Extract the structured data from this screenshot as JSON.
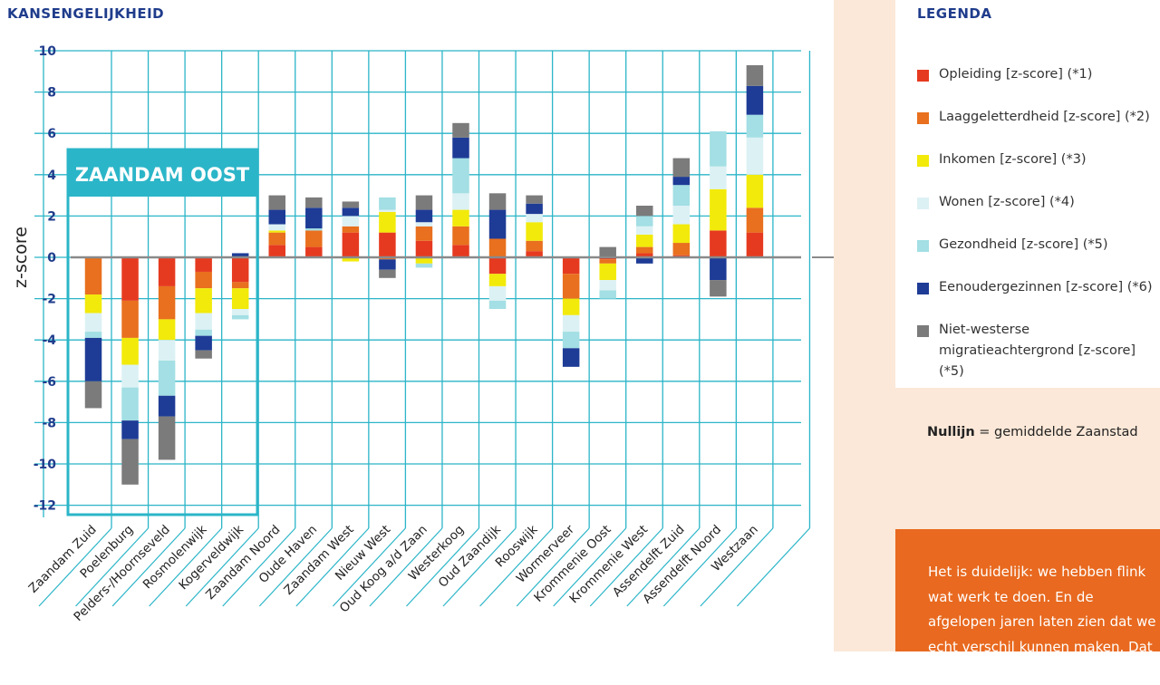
{
  "header": {
    "title": "KANSENGELIJKHEID"
  },
  "legend": {
    "title": "LEGENDA",
    "items": [
      {
        "label": "Opleiding [z-score] (*1)",
        "color": "#e63a20"
      },
      {
        "label": "Laaggeletterdheid [z-score] (*2)",
        "color": "#e8701e"
      },
      {
        "label": "Inkomen [z-score] (*3)",
        "color": "#f2ea0a"
      },
      {
        "label": "Wonen [z-score] (*4)",
        "color": "#dcf1f4"
      },
      {
        "label": "Gezondheid [z-score] (*5)",
        "color": "#a3dfe4"
      },
      {
        "label": "Eenoudergezinnen [z-score] (*6)",
        "color": "#1e3c96"
      },
      {
        "label": "Niet-westerse migratieachtergrond [z-score] (*5)",
        "color": "#7b7b7b"
      }
    ]
  },
  "nullijn": {
    "bold": "Nullijn",
    "text": " = gemiddelde Zaanstad"
  },
  "callout": {
    "text": "Het is duidelijk: we hebben flink wat werk te doen. En de afgelopen jaren laten zien dat we echt verschil kunnen maken. Dat geeft hoop –"
  },
  "highlight": {
    "label": "ZAANDAM OOST"
  },
  "colors": {
    "grid": "#2bb5c8",
    "axis": "#1f3c8c",
    "zero_line": "#8a8a8a"
  },
  "chart_data": {
    "type": "bar",
    "stacked": true,
    "ylabel": "z-score",
    "ylim": [
      -12.8,
      10
    ],
    "yticks": [
      10,
      8,
      6,
      4,
      2,
      0,
      -2,
      -4,
      -6,
      -8,
      -10,
      -12
    ],
    "categories": [
      "Zaandam Zuid",
      "Poelenburg",
      "Pelders-/Hoornseveld",
      "Rosmolenwijk",
      "Kogerveldwijk",
      "Zaandam Noord",
      "Oude Haven",
      "Zaandam West",
      "Nieuw West",
      "Oud Koog a/d Zaan",
      "Westerkoog",
      "Oud Zaandijk",
      "Rooswijk",
      "Wormerveer",
      "Krommenie Oost",
      "Krommenie West",
      "Assendelft Zuid",
      "Assendelft Noord",
      "Westzaan"
    ],
    "series": [
      {
        "name": "Opleiding [z-score] (*1)",
        "values": [
          0,
          -2.1,
          -1.4,
          -0.7,
          -1.2,
          0.6,
          0.5,
          1.2,
          1.2,
          0.8,
          0.6,
          -0.8,
          0.3,
          -0.8,
          -0.1,
          0.2,
          0.1,
          1.3,
          1.2
        ]
      },
      {
        "name": "Laaggeletterdheid [z-score] (*2)",
        "values": [
          -1.8,
          -1.8,
          -1.6,
          -0.8,
          -0.3,
          0.6,
          0.8,
          0.3,
          -0.1,
          0.7,
          0.9,
          0.9,
          0.5,
          -1.2,
          -0.2,
          0.3,
          0.6,
          0.0,
          1.2
        ]
      },
      {
        "name": "Inkomen [z-score] (*3)",
        "values": [
          -0.9,
          -1.3,
          -1.0,
          -1.2,
          -1.0,
          0.1,
          0.0,
          -0.2,
          1.0,
          -0.3,
          0.8,
          -0.6,
          0.9,
          -0.8,
          -0.8,
          0.6,
          0.9,
          2.0,
          1.6
        ]
      },
      {
        "name": "Wonen [z-score] (*4)",
        "values": [
          -0.9,
          -1.1,
          -1.0,
          -0.8,
          -0.3,
          0.3,
          0.0,
          0.5,
          0.1,
          0.2,
          0.8,
          -0.7,
          0.4,
          -0.8,
          -0.5,
          0.4,
          0.9,
          1.1,
          1.8
        ]
      },
      {
        "name": "Gezondheid [z-score] (*5)",
        "values": [
          -0.3,
          -1.6,
          -1.7,
          -0.3,
          -0.2,
          0.0,
          0.1,
          0.0,
          0.6,
          -0.2,
          1.7,
          -0.4,
          0.0,
          -0.8,
          -0.4,
          0.5,
          1.0,
          1.7,
          1.1
        ]
      },
      {
        "name": "Eenoudergezinnen [z-score] (*6)",
        "values": [
          -2.1,
          -0.9,
          -1.0,
          -0.7,
          0.2,
          0.7,
          1.0,
          0.4,
          -0.5,
          0.6,
          1.0,
          1.4,
          0.5,
          -0.9,
          0.0,
          -0.3,
          0.4,
          -1.1,
          1.4
        ]
      },
      {
        "name": "Niet-westerse migratieachtergrond [z-score] (*5)",
        "values": [
          -1.3,
          -2.2,
          -2.1,
          -0.4,
          0.0,
          0.7,
          0.5,
          0.3,
          -0.4,
          0.7,
          0.7,
          0.8,
          0.4,
          0.0,
          0.5,
          0.5,
          0.9,
          -0.8,
          1.0
        ]
      }
    ]
  }
}
